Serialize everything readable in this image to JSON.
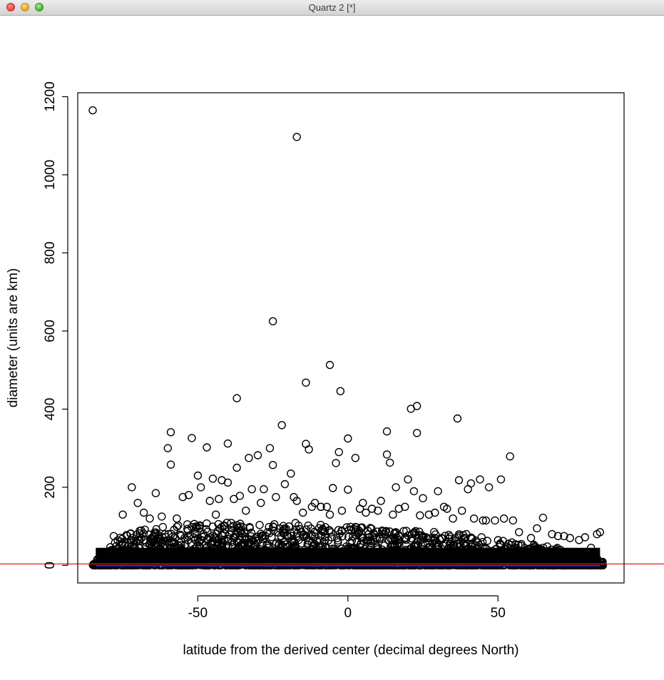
{
  "window": {
    "title": "Quartz 2 [*]"
  },
  "chart_data": {
    "type": "scatter",
    "title": "",
    "xlabel": "latitude from the derived center (decimal degrees North)",
    "ylabel": "diameter (units are km)",
    "xlim": [
      -90,
      92
    ],
    "ylim": [
      -45,
      1210
    ],
    "xticks": [
      -50,
      0,
      50
    ],
    "yticks": [
      0,
      200,
      400,
      600,
      800,
      1000,
      1200
    ],
    "grid": false,
    "legend": "none",
    "marker": "open-circle",
    "colors": {
      "points": "#000000",
      "reference_line": "#e8211b",
      "fit_line": "#2b2bd8"
    },
    "reference_line": {
      "y": 0
    },
    "fit_line": {
      "y": 1
    },
    "dense_band": {
      "description_values": "dense cloud of small-diameter points from x -85 to 85, mostly below ~60 km",
      "x_range": [
        -85,
        85
      ],
      "max_y_profile": [
        [
          -85,
          8
        ],
        [
          -80,
          40
        ],
        [
          -75,
          80
        ],
        [
          -70,
          95
        ],
        [
          -60,
          100
        ],
        [
          -50,
          110
        ],
        [
          -40,
          110
        ],
        [
          -30,
          110
        ],
        [
          -20,
          110
        ],
        [
          -10,
          105
        ],
        [
          0,
          100
        ],
        [
          10,
          95
        ],
        [
          20,
          90
        ],
        [
          30,
          85
        ],
        [
          40,
          80
        ],
        [
          50,
          65
        ],
        [
          60,
          55
        ],
        [
          70,
          45
        ],
        [
          80,
          30
        ],
        [
          85,
          10
        ]
      ]
    },
    "series": [
      {
        "x": [
          -85,
          -17,
          -25,
          -6,
          -14,
          -2.5,
          -37,
          21,
          23,
          36.5,
          -22,
          -59,
          -52,
          -47,
          -40,
          -14,
          -30,
          -26,
          54,
          13,
          23,
          0,
          -13,
          -3,
          13,
          14,
          -4,
          -25,
          2.5,
          -60,
          -37,
          -33,
          -59,
          -50,
          -45,
          -42,
          -40,
          -32,
          -19,
          -21,
          -17,
          -11,
          -9,
          -5,
          0,
          5,
          11,
          16,
          20,
          22,
          25,
          30,
          32,
          37,
          40,
          41,
          44,
          47,
          51,
          -72,
          -70,
          -64,
          -55,
          -53,
          -49,
          -46,
          -43,
          -38,
          -36,
          -28,
          -24,
          -18,
          -15,
          -9,
          -7,
          -2,
          4,
          8,
          10,
          17,
          19,
          27,
          33,
          38,
          42,
          46,
          52,
          55,
          57,
          63,
          65,
          68,
          70,
          74,
          77,
          83,
          84,
          -78,
          -75,
          -68,
          -66,
          -62,
          -57,
          -44,
          -34,
          -29,
          -12,
          -6,
          6,
          15,
          24,
          29,
          35,
          45,
          49,
          61,
          72,
          79,
          81
        ],
        "y": [
          1165,
          1097,
          625,
          513,
          468,
          446,
          428,
          401,
          408,
          376,
          359,
          341,
          326,
          302,
          312,
          311,
          282,
          300,
          279,
          343,
          339,
          325,
          297,
          290,
          284,
          263,
          262,
          257,
          275,
          300,
          250,
          275,
          258,
          230,
          222,
          218,
          212,
          195,
          235,
          208,
          165,
          160,
          150,
          198,
          194,
          160,
          165,
          200,
          220,
          190,
          172,
          190,
          150,
          218,
          195,
          210,
          220,
          200,
          220,
          200,
          160,
          185,
          175,
          180,
          200,
          165,
          170,
          170,
          178,
          195,
          175,
          175,
          135,
          150,
          150,
          140,
          145,
          145,
          140,
          145,
          150,
          130,
          145,
          140,
          120,
          115,
          120,
          115,
          85,
          95,
          122,
          80,
          75,
          70,
          65,
          80,
          85,
          75,
          130,
          135,
          120,
          125,
          120,
          130,
          140,
          160,
          150,
          130,
          135,
          130,
          128,
          135,
          120,
          115,
          115,
          70,
          75,
          72,
          45
        ]
      }
    ]
  }
}
